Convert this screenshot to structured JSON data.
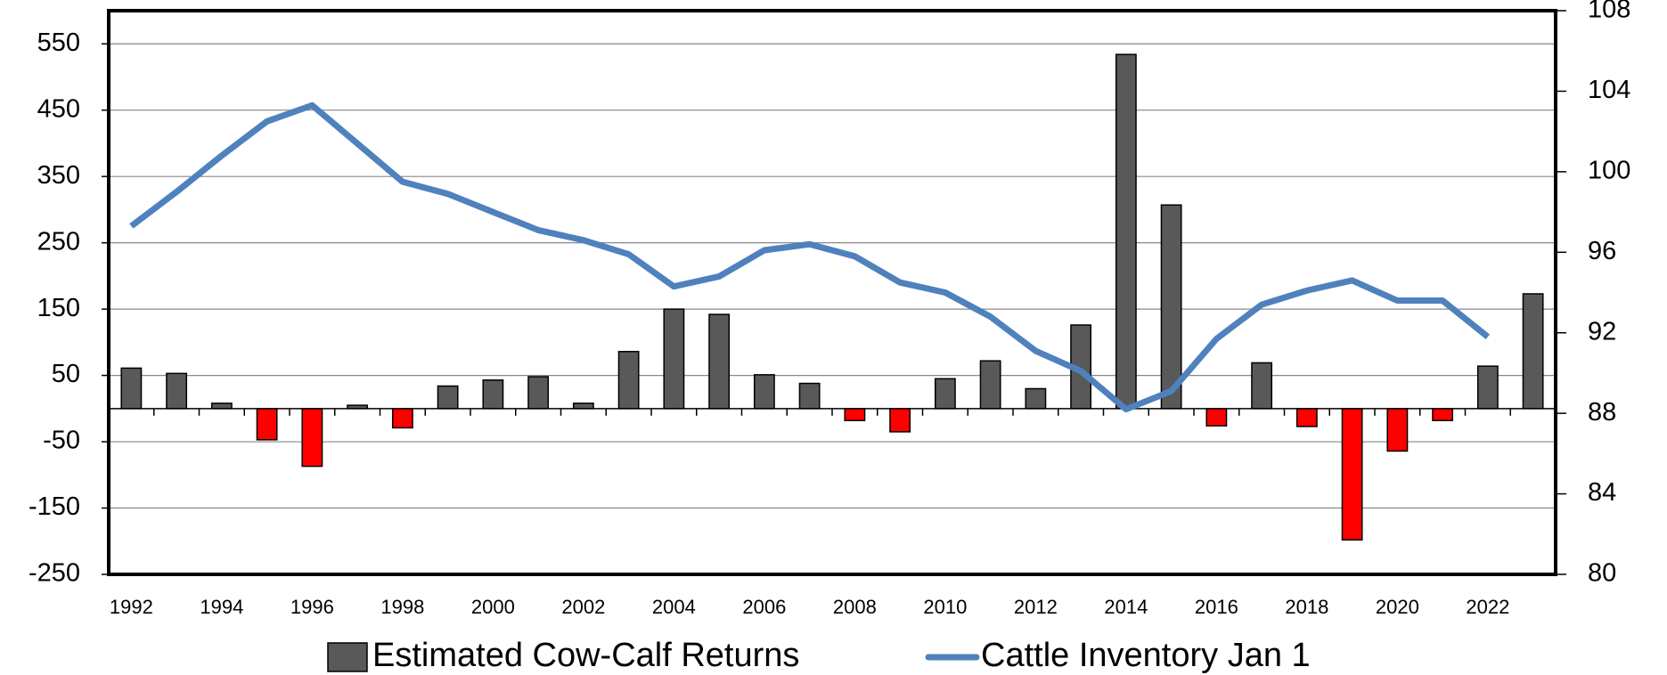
{
  "chart_data": {
    "type": "bar_line",
    "categories": [
      "1992",
      null,
      "1994",
      null,
      "1996",
      null,
      "1998",
      null,
      "2000",
      null,
      "2002",
      null,
      "2004",
      null,
      "2006",
      null,
      "2008",
      null,
      "2010",
      null,
      "2012",
      null,
      "2014",
      null,
      "2016",
      null,
      "2018",
      null,
      "2020",
      null,
      "2022",
      null
    ],
    "series": [
      {
        "name": "Estimated Cow-Calf Returns",
        "type": "bar",
        "color": "#595959",
        "negative_color": "#ff0000",
        "values": [
          61,
          53,
          8,
          -47,
          -87,
          5,
          -29,
          34,
          43,
          48,
          8,
          86,
          150,
          142,
          51,
          38,
          -18,
          -35,
          45,
          72,
          30,
          126,
          534,
          307,
          -26,
          69,
          -27,
          -198,
          -64,
          -18,
          64,
          173
        ]
      },
      {
        "name": "Cattle Inventory Jan 1",
        "type": "line",
        "axis": "y2",
        "color": "#4f81bd",
        "values": [
          97.3,
          99.0,
          100.8,
          102.5,
          103.3,
          101.4,
          99.5,
          98.9,
          98.0,
          97.1,
          96.6,
          95.9,
          94.3,
          94.8,
          96.1,
          96.4,
          95.8,
          94.5,
          94.0,
          92.8,
          91.1,
          90.1,
          88.2,
          89.1,
          91.7,
          93.4,
          94.1,
          94.6,
          93.6,
          93.6,
          91.8,
          null
        ]
      }
    ],
    "ylim": [
      -250,
      600
    ],
    "yticks": [
      -250,
      -150,
      -50,
      50,
      150,
      250,
      350,
      450,
      550
    ],
    "y2lim": [
      80,
      108
    ],
    "y2ticks": [
      80,
      84,
      88,
      92,
      96,
      100,
      104,
      108
    ],
    "grid": true,
    "legend": "bottom"
  }
}
